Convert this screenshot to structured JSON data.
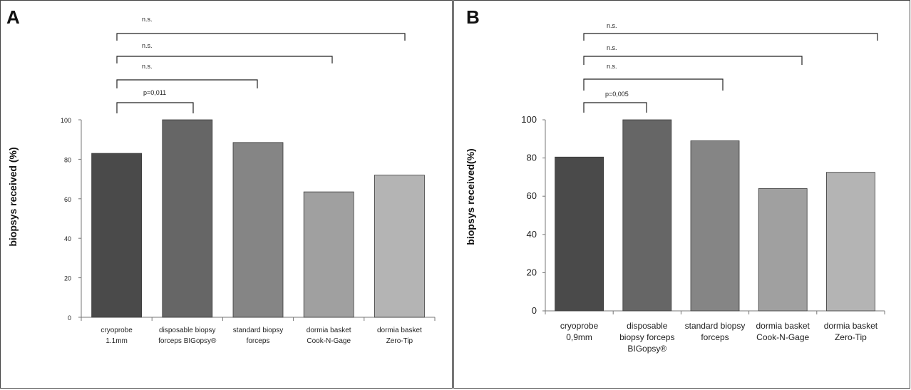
{
  "chart_data": [
    {
      "type": "bar",
      "panel_label": "A",
      "title": "",
      "xlabel": "",
      "ylabel": "biopsys received (%)",
      "ylim": [
        0,
        100
      ],
      "yticks": [
        "0",
        "20",
        "40",
        "60",
        "80",
        "100"
      ],
      "categories": [
        [
          "cryoprobe",
          "1.1mm"
        ],
        [
          "disposable biopsy",
          "forceps BIGopsy®"
        ],
        [
          "standard biopsy",
          "forceps"
        ],
        [
          "dormia basket",
          "Cook-N-Gage"
        ],
        [
          "dormia basket",
          "Zero-Tip"
        ]
      ],
      "values": [
        83,
        100,
        88.5,
        63.5,
        72
      ],
      "colors": [
        "#4a4a4a",
        "#666666",
        "#858585",
        "#a0a0a0",
        "#b4b4b4"
      ],
      "annotations": [
        {
          "label": "p=0,011",
          "from": 0,
          "to": 1
        },
        {
          "label": "n.s.",
          "from": 0,
          "to": 2
        },
        {
          "label": "n.s.",
          "from": 0,
          "to": 3
        },
        {
          "label": "n.s.",
          "from": 0,
          "to": 4
        }
      ]
    },
    {
      "type": "bar",
      "panel_label": "B",
      "title": "",
      "xlabel": "",
      "ylabel": "biopsys received(%)",
      "ylim": [
        0,
        100
      ],
      "yticks": [
        "0",
        "20",
        "40",
        "60",
        "80",
        "100"
      ],
      "categories": [
        [
          "cryoprobe",
          "0,9mm"
        ],
        [
          "disposable",
          "biopsy forceps",
          "BIGopsy®"
        ],
        [
          "standard biopsy",
          "forceps"
        ],
        [
          "dormia basket",
          "Cook-N-Gage"
        ],
        [
          "dormia basket",
          "Zero-Tip"
        ]
      ],
      "values": [
        80.5,
        100,
        89,
        64,
        72.5
      ],
      "colors": [
        "#4a4a4a",
        "#666666",
        "#858585",
        "#a0a0a0",
        "#b4b4b4"
      ],
      "annotations": [
        {
          "label": "p=0,005",
          "from": 0,
          "to": 1
        },
        {
          "label": "n.s.",
          "from": 0,
          "to": 2
        },
        {
          "label": "n.s.",
          "from": 0,
          "to": 3
        },
        {
          "label": "n.s.",
          "from": 0,
          "to": 4
        }
      ]
    }
  ]
}
